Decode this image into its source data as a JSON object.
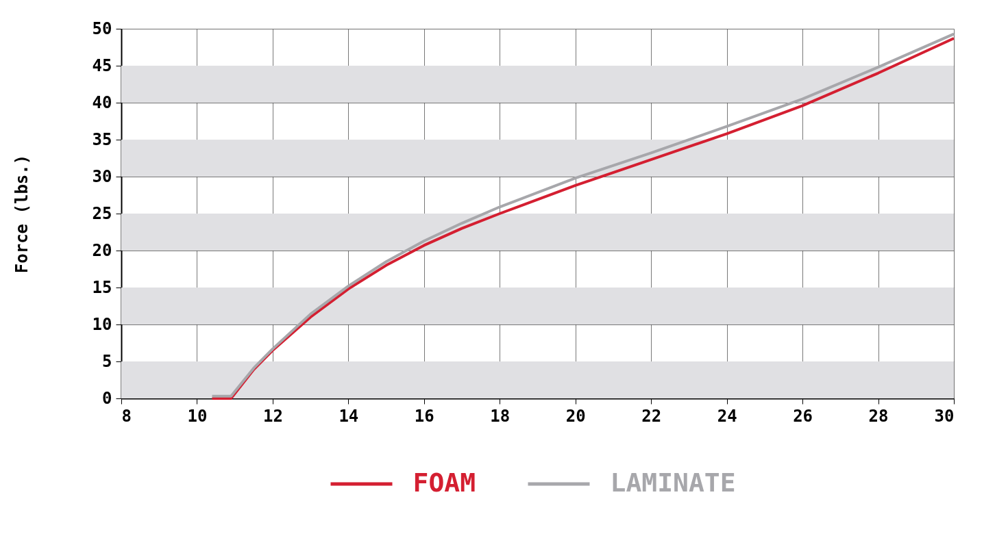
{
  "chart_data": {
    "type": "line",
    "ylabel": "Force (lbs.)",
    "xlim": [
      8,
      30
    ],
    "xticks": [
      8,
      10,
      12,
      14,
      16,
      18,
      20,
      22,
      24,
      26,
      28,
      30
    ],
    "ylim": [
      0,
      50
    ],
    "yticks": [
      0,
      5,
      10,
      15,
      20,
      25,
      30,
      35,
      40,
      45,
      50
    ],
    "grid": true,
    "legend": "bottom",
    "line_style": "solid",
    "marker": "none",
    "bands": [
      {
        "axis": "y",
        "from": 0,
        "to": 5,
        "color": "#e0e0e3"
      },
      {
        "axis": "y",
        "from": 10,
        "to": 15,
        "color": "#e0e0e3"
      },
      {
        "axis": "y",
        "from": 20,
        "to": 25,
        "color": "#e0e0e3"
      },
      {
        "axis": "y",
        "from": 30,
        "to": 35,
        "color": "#e0e0e3"
      },
      {
        "axis": "y",
        "from": 40,
        "to": 45,
        "color": "#e0e0e3"
      }
    ],
    "series": [
      {
        "name": "FOAM",
        "color": "#d41f31",
        "x": [
          10.4,
          10.9,
          11.5,
          12,
          13,
          14,
          15,
          16,
          17,
          18,
          20,
          22,
          24,
          26,
          28,
          30
        ],
        "values": [
          0,
          0,
          3.9,
          6.5,
          11.0,
          14.8,
          18.0,
          20.7,
          23.0,
          25.0,
          28.8,
          32.3,
          35.8,
          39.6,
          44.0,
          48.7
        ]
      },
      {
        "name": "LAMINATE",
        "color": "#a7a7ab",
        "x": [
          10.4,
          10.9,
          11.5,
          12,
          13,
          14,
          15,
          16,
          17,
          18,
          20,
          22,
          24,
          26,
          28,
          30
        ],
        "values": [
          0.3,
          0.3,
          4.1,
          6.7,
          11.4,
          15.2,
          18.5,
          21.3,
          23.7,
          25.9,
          29.8,
          33.2,
          36.8,
          40.5,
          44.8,
          49.3
        ]
      }
    ]
  }
}
